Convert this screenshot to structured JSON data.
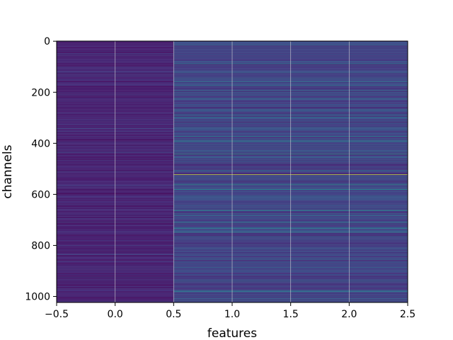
{
  "chart_data": {
    "type": "heatmap",
    "title": "",
    "xlabel": "features",
    "ylabel": "channels",
    "xlim": [
      -0.5,
      2.5
    ],
    "ylim": [
      1023.5,
      -0.5
    ],
    "x_ticks": [
      -0.5,
      0.0,
      0.5,
      1.0,
      1.5,
      2.0,
      2.5
    ],
    "x_tick_labels": [
      "−0.5",
      "0.0",
      "0.5",
      "1.0",
      "1.5",
      "2.0",
      "2.5"
    ],
    "y_ticks": [
      0,
      200,
      400,
      600,
      800,
      1000
    ],
    "y_tick_labels": [
      "0",
      "200",
      "400",
      "600",
      "800",
      "1000"
    ],
    "grid": true,
    "colormap": "viridis",
    "columns": [
      0,
      1,
      2
    ],
    "rows": 1024,
    "column_0_profile": "uniformly low values (dark purple/blue) across all channels",
    "columns_1_2_profile": "identical per channel; mostly low-mid values with teal bands",
    "highlighted_channels": [
      {
        "channel": 442,
        "level": 0.6
      },
      {
        "channel": 522,
        "level": 1.0
      },
      {
        "channel": 562,
        "level": 0.55
      },
      {
        "channel": 748,
        "level": 0.5
      }
    ]
  },
  "colors": {
    "low": "#440154",
    "mid": "#31688e",
    "teal": "#21918c",
    "green": "#5ec962",
    "high": "#fde725",
    "grid": "#d9d9d9"
  }
}
